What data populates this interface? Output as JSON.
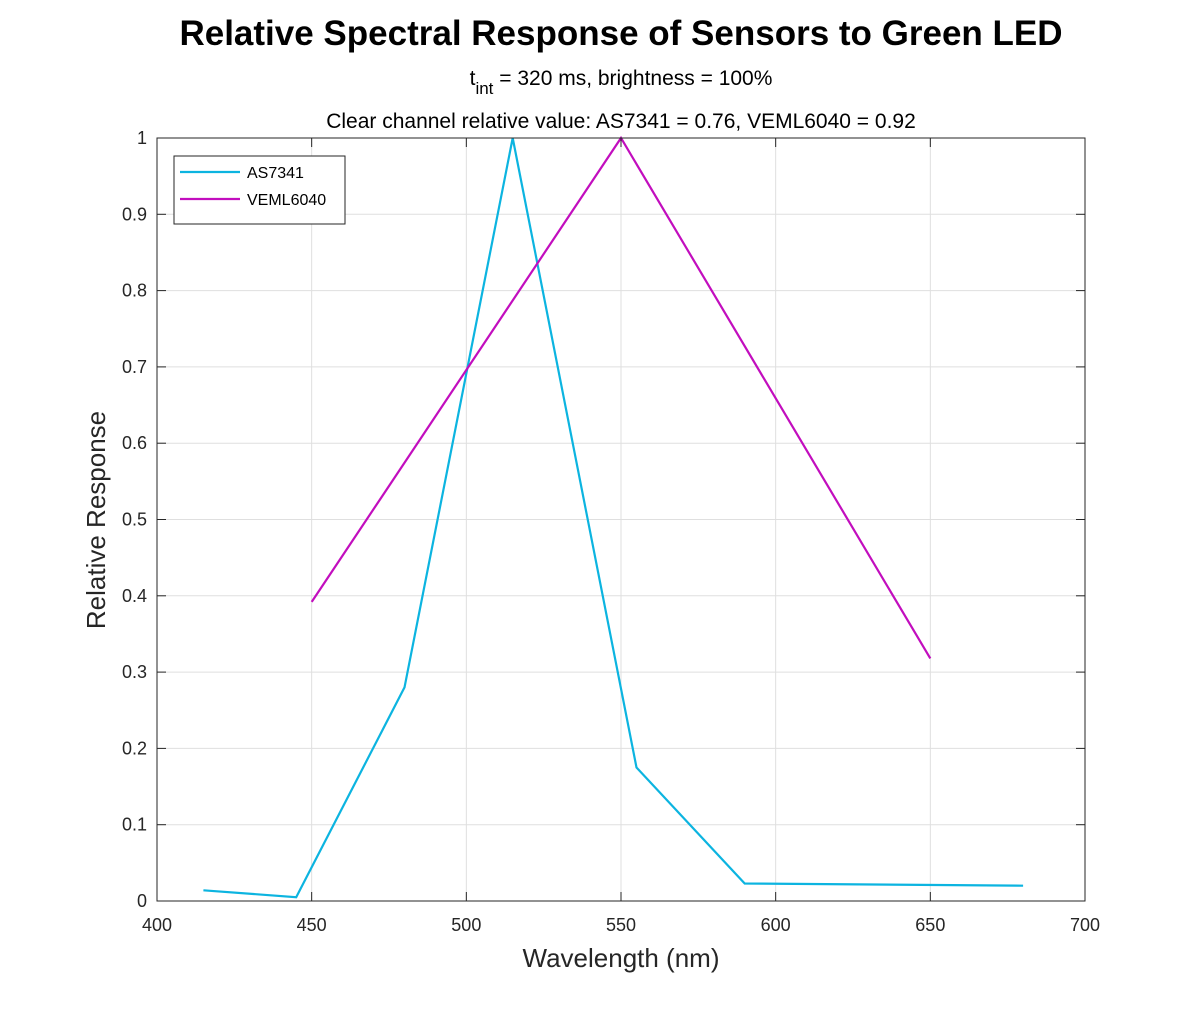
{
  "chart_data": {
    "type": "line",
    "title": "Relative Spectral Response of Sensors to Green LED",
    "subtitle_line1": {
      "var": "t",
      "sub": "int",
      "rest": " = 320 ms, brightness = 100%"
    },
    "subtitle_line2": "Clear channel relative value: AS7341 = 0.76, VEML6040 = 0.92",
    "xlabel": "Wavelength (nm)",
    "ylabel": "Relative Response",
    "xlim": [
      400,
      700
    ],
    "ylim": [
      0,
      1
    ],
    "xticks": [
      400,
      450,
      500,
      550,
      600,
      650,
      700
    ],
    "yticks": [
      0,
      0.1,
      0.2,
      0.3,
      0.4,
      0.5,
      0.6,
      0.7,
      0.8,
      0.9,
      1
    ],
    "grid": true,
    "legend_position": "top-left",
    "series": [
      {
        "name": "AS7341",
        "color": "#0CB4E0",
        "x": [
          415,
          445,
          480,
          515,
          555,
          590,
          680
        ],
        "y": [
          0.014,
          0.005,
          0.28,
          1.0,
          0.175,
          0.023,
          0.02
        ]
      },
      {
        "name": "VEML6040",
        "color": "#C20EBE",
        "x": [
          450,
          550,
          650
        ],
        "y": [
          0.392,
          1.0,
          0.318
        ]
      }
    ]
  }
}
